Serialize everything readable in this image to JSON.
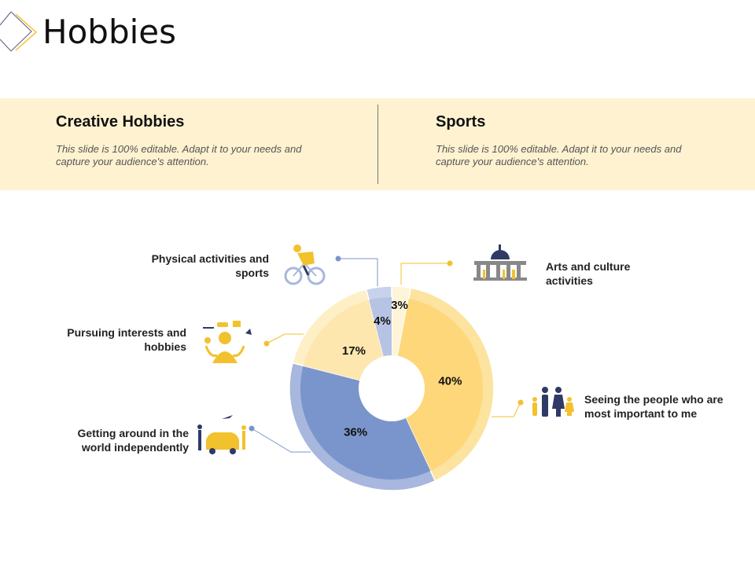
{
  "header": {
    "title": "Hobbies"
  },
  "band": {
    "left": {
      "heading": "Creative Hobbies",
      "text": "This slide is 100% editable. Adapt it to your needs and capture your audience's attention."
    },
    "right": {
      "heading": "Sports",
      "text": "This slide is 100% editable. Adapt it to your needs and capture your audience's attention."
    }
  },
  "chart_data": {
    "type": "pie",
    "donut": true,
    "categories": [
      "Arts and culture activities",
      "Seeing the people who are most important to me",
      "Getting around in the world independently",
      "Pursuing interests and hobbies",
      "Physical activities and sports"
    ],
    "values": [
      3,
      40,
      36,
      17,
      4
    ],
    "labels": [
      "3%",
      "40%",
      "36%",
      "17%",
      "4%"
    ],
    "colors": [
      "#FEF4D8",
      "#FDD77A",
      "#7A95CC",
      "#FDE7AE",
      "#B7C3E3"
    ],
    "rim_colors": [
      "#FEF4D8",
      "#FCE39F",
      "#A7B7DD",
      "#FEEFC6",
      "#C9D2EC"
    ],
    "icons": [
      "capitol-building-icon",
      "family-icon",
      "car-travel-icon",
      "juggling-hobbies-icon",
      "cyclist-icon"
    ]
  },
  "colors": {
    "accent_yellow": "#F2C12E",
    "accent_blue": "#7A95CC",
    "band": "#FEF2D0"
  }
}
